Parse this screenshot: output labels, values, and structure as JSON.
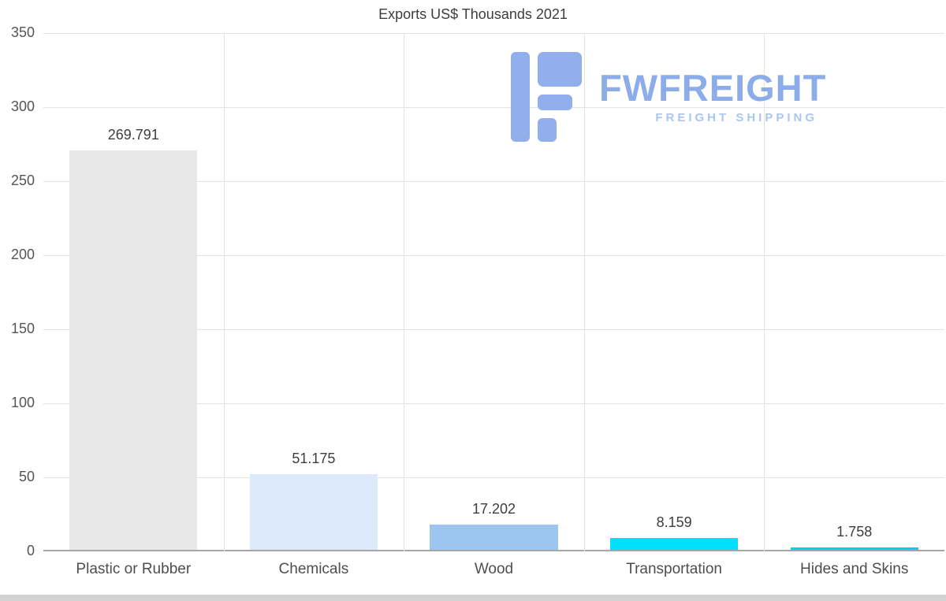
{
  "chart_data": {
    "type": "bar",
    "title": "Exports US$ Thousands 2021",
    "categories": [
      "Plastic or Rubber",
      "Chemicals",
      "Wood",
      "Transportation",
      "Hides and Skins"
    ],
    "values": [
      269.791,
      51.175,
      17.202,
      8.159,
      1.758
    ],
    "value_labels": [
      "269.791",
      "51.175",
      "17.202",
      "8.159",
      "1.758"
    ],
    "bar_colors": [
      "#e7e7e7",
      "#dbe9fb",
      "#9cc6ee",
      "#00e0fc",
      "#00d2f2"
    ],
    "ylim": [
      0,
      350
    ],
    "yticks": [
      0,
      50,
      100,
      150,
      200,
      250,
      300,
      350
    ],
    "grid": true,
    "legend": "none",
    "xlabel": "",
    "ylabel": ""
  },
  "watermark": {
    "brand": "FWFREIGHT",
    "tagline": "FREIGHT SHIPPING",
    "logo_color": "#8babea"
  },
  "colors": {
    "grid": "#e2e2e2",
    "axis": "#a6a6a6",
    "label_text": "#3d3d3d",
    "tick_text": "#555555"
  }
}
